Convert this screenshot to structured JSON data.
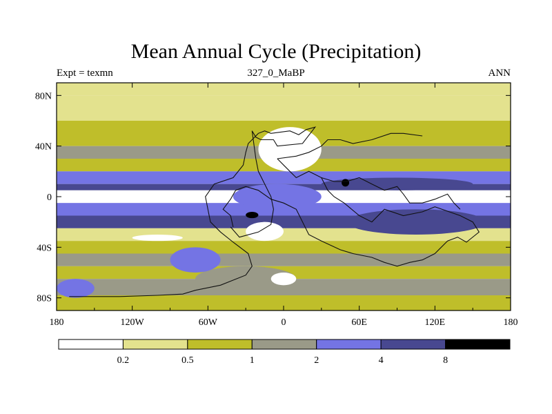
{
  "chart_data": {
    "type": "heatmap",
    "title": "Mean Annual Cycle (Precipitation)",
    "left_label": "Expt = texmn",
    "center_label": "327_0_MaBP",
    "right_label": "ANN",
    "x_range": [
      -180,
      180
    ],
    "y_range": [
      -90,
      90
    ],
    "x_ticks": [
      {
        "value": -180,
        "label": "180"
      },
      {
        "value": -120,
        "label": "120W"
      },
      {
        "value": -60,
        "label": "60W"
      },
      {
        "value": 0,
        "label": "0"
      },
      {
        "value": 60,
        "label": "60E"
      },
      {
        "value": 120,
        "label": "120E"
      },
      {
        "value": 180,
        "label": "180"
      }
    ],
    "y_ticks": [
      {
        "value": 80,
        "label": "80N"
      },
      {
        "value": 40,
        "label": "40N"
      },
      {
        "value": 0,
        "label": "0"
      },
      {
        "value": -40,
        "label": "40S"
      },
      {
        "value": -80,
        "label": "80S"
      }
    ],
    "colorbar": {
      "levels": [
        "0.2",
        "0.5",
        "1",
        "2",
        "4",
        "8"
      ],
      "colors": [
        "#ffffff",
        "#e3e28e",
        "#bfbe2a",
        "#9a9a88",
        "#7474e4",
        "#484890",
        "#000000"
      ]
    },
    "zonal_bands": [
      {
        "lat": [
          80,
          90
        ],
        "category": 1
      },
      {
        "lat": [
          60,
          80
        ],
        "category": 1
      },
      {
        "lat": [
          40,
          60
        ],
        "category": 2
      },
      {
        "lat": [
          30,
          40
        ],
        "category": 3
      },
      {
        "lat": [
          20,
          30
        ],
        "category": 2
      },
      {
        "lat": [
          10,
          20
        ],
        "category": 4
      },
      {
        "lat": [
          5,
          10
        ],
        "category": 5
      },
      {
        "lat": [
          -5,
          5
        ],
        "category": 0
      },
      {
        "lat": [
          -15,
          -5
        ],
        "category": 4
      },
      {
        "lat": [
          -25,
          -15
        ],
        "category": 5
      },
      {
        "lat": [
          -35,
          -25
        ],
        "category": 1
      },
      {
        "lat": [
          -45,
          -35
        ],
        "category": 2
      },
      {
        "lat": [
          -55,
          -45
        ],
        "category": 3
      },
      {
        "lat": [
          -65,
          -55
        ],
        "category": 2
      },
      {
        "lat": [
          -78,
          -65
        ],
        "category": 3
      },
      {
        "lat": [
          -90,
          -78
        ],
        "category": 2
      }
    ],
    "regional_patches": [
      {
        "lon": [
          50,
          160
        ],
        "lat": [
          -30,
          -10
        ],
        "category": 5
      },
      {
        "lon": [
          30,
          150
        ],
        "lat": [
          5,
          15
        ],
        "category": 5
      },
      {
        "lon": [
          -40,
          30
        ],
        "lat": [
          -10,
          10
        ],
        "category": 4
      },
      {
        "lon": [
          -20,
          30
        ],
        "lat": [
          20,
          55
        ],
        "category": 0
      },
      {
        "lon": [
          -30,
          0
        ],
        "lat": [
          -35,
          -20
        ],
        "category": 0
      },
      {
        "lon": [
          -70,
          10
        ],
        "lat": [
          -75,
          -55
        ],
        "category": 3
      },
      {
        "lon": [
          -90,
          -50
        ],
        "lat": [
          -60,
          -40
        ],
        "category": 4
      },
      {
        "lon": [
          -10,
          10
        ],
        "lat": [
          -70,
          -60
        ],
        "category": 0
      },
      {
        "lon": [
          -120,
          -80
        ],
        "lat": [
          -35,
          -30
        ],
        "category": 0
      },
      {
        "lon": [
          -180,
          -150
        ],
        "lat": [
          -80,
          -65
        ],
        "category": 4
      },
      {
        "lon": [
          -30,
          -20
        ],
        "lat": [
          -17,
          -12
        ],
        "category": 6
      },
      {
        "lon": [
          46,
          52
        ],
        "lat": [
          8,
          14
        ],
        "category": 6
      }
    ],
    "coastlines": [
      [
        [
          -170,
          -79
        ],
        [
          -130,
          -79
        ],
        [
          -100,
          -78
        ],
        [
          -80,
          -77
        ],
        [
          -70,
          -74
        ],
        [
          -50,
          -70
        ],
        [
          -40,
          -66
        ],
        [
          -30,
          -62
        ],
        [
          -25,
          -55
        ],
        [
          -28,
          -45
        ],
        [
          -40,
          -36
        ],
        [
          -50,
          -28
        ],
        [
          -58,
          -20
        ],
        [
          -60,
          -10
        ],
        [
          -62,
          0
        ],
        [
          -55,
          10
        ],
        [
          -40,
          15
        ],
        [
          -32,
          25
        ],
        [
          -30,
          35
        ],
        [
          -28,
          42
        ],
        [
          -20,
          50
        ],
        [
          -15,
          52
        ],
        [
          -10,
          50
        ],
        [
          5,
          52
        ],
        [
          12,
          49
        ],
        [
          18,
          53
        ],
        [
          25,
          55
        ],
        [
          15,
          42
        ],
        [
          -5,
          40
        ],
        [
          -8,
          45
        ],
        [
          -18,
          45
        ],
        [
          -22,
          47
        ],
        [
          -25,
          52
        ],
        [
          -22,
          30
        ],
        [
          -20,
          20
        ],
        [
          -15,
          10
        ],
        [
          -10,
          0
        ],
        [
          -8,
          -10
        ],
        [
          -10,
          -22
        ],
        [
          -20,
          -28
        ],
        [
          -35,
          -32
        ],
        [
          -42,
          -24
        ]
      ],
      [
        [
          -40,
          -24
        ],
        [
          -42,
          -15
        ],
        [
          -48,
          -10
        ],
        [
          -42,
          -2
        ],
        [
          -38,
          5
        ],
        [
          -30,
          8
        ],
        [
          -20,
          5
        ],
        [
          -10,
          -2
        ],
        [
          0,
          -5
        ],
        [
          10,
          -10
        ],
        [
          20,
          -30
        ],
        [
          30,
          -35
        ],
        [
          45,
          -42
        ],
        [
          55,
          -45
        ],
        [
          70,
          -48
        ],
        [
          80,
          -52
        ],
        [
          90,
          -55
        ],
        [
          100,
          -52
        ],
        [
          110,
          -50
        ],
        [
          120,
          -45
        ],
        [
          130,
          -35
        ],
        [
          138,
          -32
        ],
        [
          145,
          -36
        ],
        [
          155,
          -28
        ],
        [
          150,
          -20
        ],
        [
          140,
          -15
        ],
        [
          120,
          -8
        ],
        [
          110,
          -12
        ],
        [
          95,
          -15
        ],
        [
          80,
          -10
        ],
        [
          70,
          -20
        ],
        [
          60,
          -15
        ],
        [
          48,
          -5
        ],
        [
          40,
          0
        ],
        [
          35,
          5
        ],
        [
          30,
          15
        ],
        [
          20,
          20
        ],
        [
          10,
          15
        ],
        [
          5,
          20
        ],
        [
          0,
          25
        ],
        [
          -5,
          30
        ]
      ],
      [
        [
          30,
          15
        ],
        [
          40,
          12
        ],
        [
          50,
          12
        ],
        [
          60,
          15
        ],
        [
          70,
          10
        ],
        [
          80,
          5
        ],
        [
          90,
          8
        ],
        [
          95,
          2
        ],
        [
          100,
          -5
        ],
        [
          110,
          -5
        ],
        [
          120,
          -2
        ],
        [
          130,
          2
        ],
        [
          135,
          -5
        ],
        [
          140,
          -10
        ]
      ],
      [
        [
          -5,
          30
        ],
        [
          10,
          32
        ],
        [
          20,
          35
        ],
        [
          30,
          40
        ],
        [
          35,
          45
        ],
        [
          45,
          45
        ],
        [
          55,
          42
        ],
        [
          70,
          45
        ],
        [
          85,
          50
        ],
        [
          95,
          50
        ],
        [
          110,
          48
        ]
      ]
    ]
  }
}
